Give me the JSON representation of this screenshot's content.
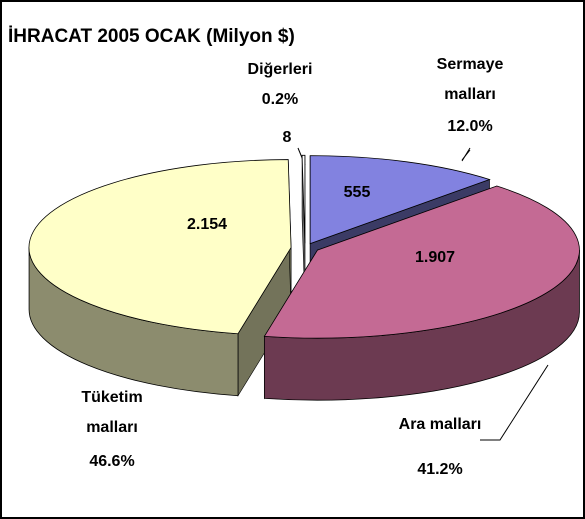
{
  "chart_data": {
    "type": "pie3d",
    "title": "İHRACAT 2005 OCAK (Milyon $)",
    "categories": [
      "Sermaye malları",
      "Ara malları",
      "Tüketim malları",
      "Diğerleri"
    ],
    "values": [
      555,
      1907,
      2154,
      8
    ],
    "value_labels": [
      "555",
      "1.907",
      "2.154",
      "8"
    ],
    "percent_labels": [
      "12.0%",
      "41.2%",
      "46.6%",
      "0.2%"
    ],
    "colors": [
      "#8282e0",
      "#c46a94",
      "#ffffc8",
      "#ffffff"
    ]
  }
}
